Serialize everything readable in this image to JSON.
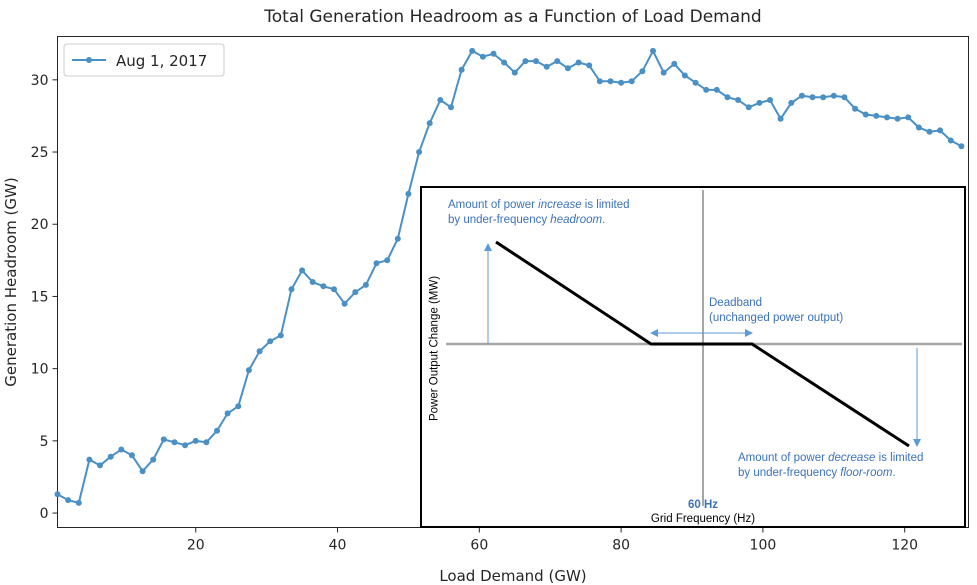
{
  "chart_data": {
    "type": "line",
    "title": "Total Generation Headroom as a Function of Load Demand",
    "xlabel": "Load Demand (GW)",
    "ylabel": "Generation Headroom (GW)",
    "xlim": [
      0.5,
      129
    ],
    "ylim": [
      -1,
      33
    ],
    "xticks": [
      20,
      40,
      60,
      80,
      100,
      120
    ],
    "yticks": [
      0,
      5,
      10,
      15,
      20,
      25,
      30
    ],
    "grid": false,
    "legend_position": "upper-left",
    "color": "#4a90c4",
    "series": [
      {
        "name": "Aug 1, 2017",
        "x": [
          0.5,
          2,
          3.5,
          5,
          6.5,
          8,
          9.5,
          11,
          12.5,
          14,
          15.5,
          17,
          18.5,
          20,
          21.5,
          23,
          24.5,
          26,
          27.5,
          29,
          30.5,
          32,
          33.5,
          35,
          36.5,
          38,
          39.5,
          41,
          42.5,
          44,
          45.5,
          47,
          48.5,
          50,
          51.5,
          53,
          54.5,
          56,
          57.5,
          59,
          60.5,
          62,
          63.5,
          65,
          66.5,
          68,
          69.5,
          71,
          72.5,
          74,
          75.5,
          77,
          78.5,
          80,
          81.5,
          83,
          84.5,
          86,
          87.5,
          89,
          90.5,
          92,
          93.5,
          95,
          96.5,
          98,
          99.5,
          101,
          102.5,
          104,
          105.5,
          107,
          108.5,
          110,
          111.5,
          113,
          114.5,
          116,
          117.5,
          119,
          120.5,
          122,
          123.5,
          125,
          126.5,
          128
        ],
        "y": [
          1.3,
          0.9,
          0.7,
          3.7,
          3.3,
          3.9,
          4.4,
          4.0,
          2.9,
          3.7,
          5.1,
          4.9,
          4.7,
          5.0,
          4.9,
          5.7,
          6.9,
          7.4,
          9.9,
          11.2,
          11.9,
          12.3,
          15.5,
          16.8,
          16.0,
          15.7,
          15.5,
          14.5,
          15.3,
          15.8,
          17.3,
          17.5,
          19.0,
          22.1,
          25.0,
          27.0,
          28.6,
          28.1,
          30.7,
          32.0,
          31.6,
          31.8,
          31.2,
          30.5,
          31.3,
          31.3,
          30.9,
          31.3,
          30.8,
          31.2,
          31.0,
          29.9,
          29.9,
          29.8,
          29.9,
          30.6,
          32.0,
          30.5,
          31.1,
          30.3,
          29.8,
          29.3,
          29.3,
          28.8,
          28.6,
          28.1,
          28.4,
          28.6,
          27.3,
          28.4,
          28.9,
          28.8,
          28.8,
          28.9,
          28.8,
          28.0,
          27.6,
          27.5,
          27.4,
          27.3,
          27.4,
          26.7,
          26.4,
          26.5,
          25.8,
          25.4
        ]
      }
    ]
  },
  "legend": {
    "label": "Aug 1, 2017"
  },
  "inset": {
    "y_axis_label": "Power Output Change (MW)",
    "x_axis_label": "Grid Frequency (Hz)",
    "center_label": "60 Hz",
    "annotation_increase": {
      "pre": "Amount of power ",
      "emph": "increase",
      "post": " is limited",
      "line2_pre": "by under-frequency ",
      "line2_emph": "headroom",
      "line2_post": "."
    },
    "annotation_deadband_line1": "Deadband",
    "annotation_deadband_line2": "(unchanged power output)",
    "annotation_decrease": {
      "pre": "Amount of power ",
      "emph": "decrease",
      "post": " is limited",
      "line2_pre": "by under-frequency ",
      "line2_emph": "floor-room",
      "line2_post": "."
    },
    "colors": {
      "annotation": "#3b72b9",
      "arrow": "#5b9bd5",
      "curve": "#000000",
      "axes": "#a6a6a6"
    }
  }
}
